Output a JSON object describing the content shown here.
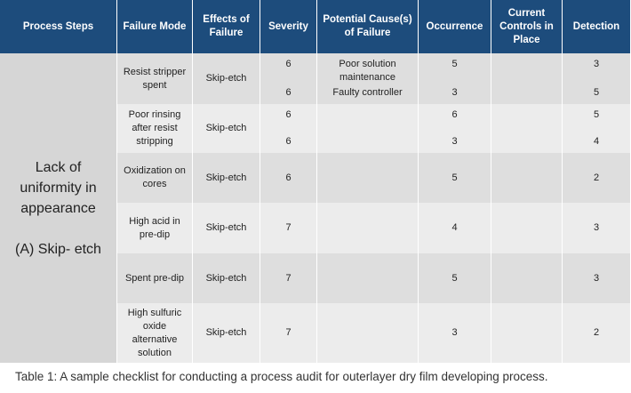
{
  "table": {
    "columns": [
      "Process Steps",
      "Failure Mode",
      "Effects of Failure",
      "Severity",
      "Potential Cause(s) of Failure",
      "Occurrence",
      "Current Controls in Place",
      "Detection"
    ],
    "process_step": [
      "Lack of uniformity in appearance",
      "(A) Skip- etch"
    ],
    "rows": [
      {
        "failure_mode": "Resist stripper spent",
        "effect": "Skip-etch",
        "severity": [
          6,
          6
        ],
        "causes": [
          "Poor solution maintenance",
          "Faulty controller"
        ],
        "occurrence": [
          5,
          3
        ],
        "detection": [
          3,
          5
        ]
      },
      {
        "failure_mode": "Poor rinsing after resist stripping",
        "effect": "Skip-etch",
        "severity": [
          6,
          6
        ],
        "occurrence": [
          6,
          3
        ],
        "detection": [
          5,
          4
        ]
      },
      {
        "failure_mode": "Oxidization on cores",
        "effect": "Skip-etch",
        "severity": [
          6
        ],
        "occurrence": [
          5
        ],
        "detection": [
          2
        ]
      },
      {
        "failure_mode": "High acid in pre-dip",
        "effect": "Skip-etch",
        "severity": [
          7
        ],
        "occurrence": [
          4
        ],
        "detection": [
          3
        ]
      },
      {
        "failure_mode": "Spent pre-dip",
        "effect": "Skip-etch",
        "severity": [
          7
        ],
        "occurrence": [
          5
        ],
        "detection": [
          3
        ]
      },
      {
        "failure_mode": "High sulfuric oxide alternative solution",
        "effect": "Skip-etch",
        "severity": [
          7
        ],
        "occurrence": [
          3
        ],
        "detection": [
          2
        ]
      }
    ]
  },
  "caption": "Table 1: A sample checklist for conducting a process audit for outerlayer dry film developing process."
}
